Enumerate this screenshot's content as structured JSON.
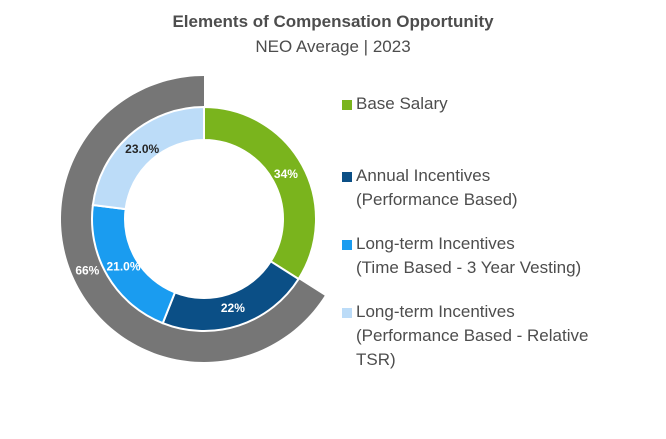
{
  "chart_data": {
    "type": "pie",
    "title": "Elements of Compensation Opportunity",
    "subtitle": "NEO Average | 2023",
    "inner_ring": {
      "categories": [
        "Base Salary",
        "Annual Incentives (Performance Based)",
        "Long-term Incentives (Time Based - 3 Year Vesting)",
        "Long-term Incentives (Performance Based - Relative TSR)"
      ],
      "values": [
        34,
        22,
        21.0,
        23.0
      ],
      "labels": [
        "34%",
        "22%",
        "21.0%",
        "23.0%"
      ],
      "colors": [
        "#7ab41d",
        "#0b4f86",
        "#1a9cf0",
        "#bcdcf8"
      ],
      "label_colors": [
        "#ffffff",
        "#ffffff",
        "#ffffff",
        "#262626"
      ]
    },
    "outer_ring": {
      "values": [
        66,
        34
      ],
      "labels": [
        "66%",
        ""
      ],
      "colors": [
        "#767676",
        "none"
      ],
      "label_colors": [
        "#ffffff",
        "#ffffff"
      ]
    },
    "legend": [
      {
        "text": "Base Salary",
        "color": "#7ab41d"
      },
      {
        "text": "Annual Incentives\n(Performance Based)",
        "color": "#0b4f86"
      },
      {
        "text": "Long-term Incentives\n(Time Based - 3 Year Vesting)",
        "color": "#1a9cf0"
      },
      {
        "text": "Long-term Incentives\n(Performance Based - Relative\nTSR)",
        "color": "#bcdcf8"
      }
    ]
  }
}
